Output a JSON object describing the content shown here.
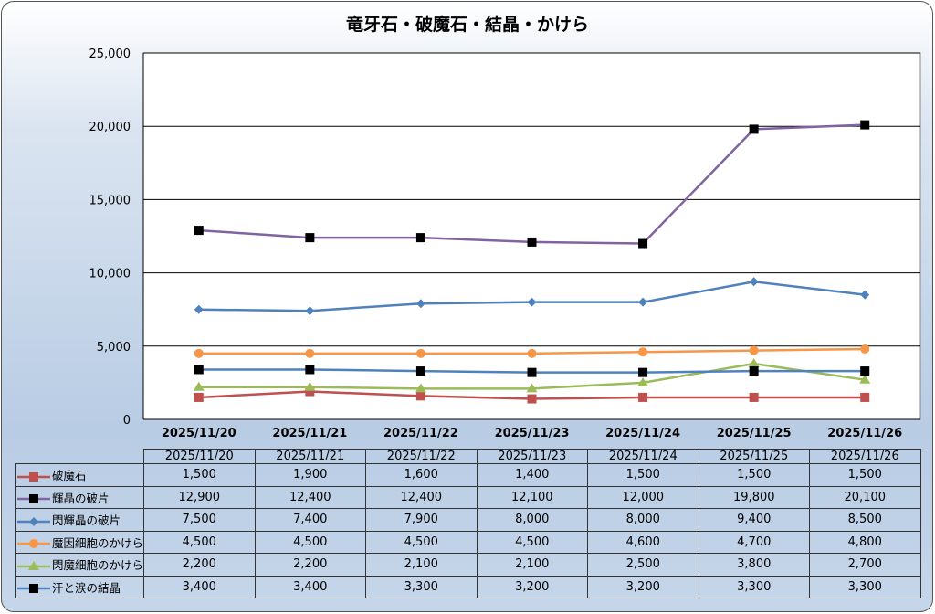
{
  "chart_data": {
    "type": "line",
    "title": "竜牙石・破魔石・結晶・かけら",
    "categories": [
      "2025/11/20",
      "2025/11/21",
      "2025/11/22",
      "2025/11/23",
      "2025/11/24",
      "2025/11/25",
      "2025/11/26"
    ],
    "ylim": [
      0,
      25000
    ],
    "yticks": [
      "0",
      "5,000",
      "10,000",
      "15,000",
      "20,000",
      "25,000"
    ],
    "grid": true,
    "legend": "data-table",
    "series": [
      {
        "name": "破魔石",
        "values": [
          1500,
          1900,
          1600,
          1400,
          1500,
          1500,
          1500
        ],
        "labels": [
          "1,500",
          "1,900",
          "1,600",
          "1,400",
          "1,500",
          "1,500",
          "1,500"
        ],
        "color": "#c0504d",
        "marker": "square",
        "marker_color": "#c0504d"
      },
      {
        "name": "輝晶の破片",
        "values": [
          12900,
          12400,
          12400,
          12100,
          12000,
          19800,
          20100
        ],
        "labels": [
          "12,900",
          "12,400",
          "12,400",
          "12,100",
          "12,000",
          "19,800",
          "20,100"
        ],
        "color": "#8064a2",
        "marker": "square",
        "marker_color": "#000000"
      },
      {
        "name": "閃輝晶の破片",
        "values": [
          7500,
          7400,
          7900,
          8000,
          8000,
          9400,
          8500
        ],
        "labels": [
          "7,500",
          "7,400",
          "7,900",
          "8,000",
          "8,000",
          "9,400",
          "8,500"
        ],
        "color": "#4f81bd",
        "marker": "diamond",
        "marker_color": "#4f81bd"
      },
      {
        "name": "魔因細胞のかけら",
        "values": [
          4500,
          4500,
          4500,
          4500,
          4600,
          4700,
          4800
        ],
        "labels": [
          "4,500",
          "4,500",
          "4,500",
          "4,500",
          "4,600",
          "4,700",
          "4,800"
        ],
        "color": "#f79646",
        "marker": "circle",
        "marker_color": "#f79646"
      },
      {
        "name": "閃魔細胞のかけら",
        "values": [
          2200,
          2200,
          2100,
          2100,
          2500,
          3800,
          2700
        ],
        "labels": [
          "2,200",
          "2,200",
          "2,100",
          "2,100",
          "2,500",
          "3,800",
          "2,700"
        ],
        "color": "#9bbb59",
        "marker": "triangle",
        "marker_color": "#9bbb59"
      },
      {
        "name": "汗と涙の結晶",
        "values": [
          3400,
          3400,
          3300,
          3200,
          3200,
          3300,
          3300
        ],
        "labels": [
          "3,400",
          "3,400",
          "3,300",
          "3,200",
          "3,200",
          "3,300",
          "3,300"
        ],
        "color": "#4f81bd",
        "marker": "square",
        "marker_color": "#000000"
      }
    ]
  }
}
